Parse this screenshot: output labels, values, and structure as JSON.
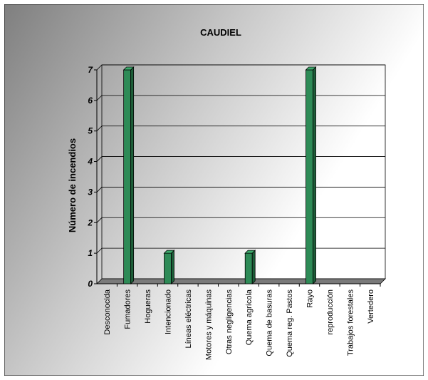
{
  "chart_data": {
    "type": "bar",
    "title": "CAUDIEL",
    "xlabel": "",
    "ylabel": "Número de incendios",
    "ylim": [
      0,
      7
    ],
    "yticks": [
      "0",
      "1",
      "2",
      "3",
      "4",
      "5",
      "6",
      "7"
    ],
    "grid": true,
    "legend": "none",
    "categories": [
      "Desconocida",
      "Fumadores",
      "Hogueras",
      "Intencionado",
      "Líneas eléctricas",
      "Motores y máquinas",
      "Otras negligencias",
      "Quema agrícola",
      "Quema de basuras",
      "Quema reg. Pastos",
      "Rayo",
      "reproducción",
      "Trabajos forestales",
      "Vertedero"
    ],
    "values": [
      0,
      7,
      0,
      1,
      0,
      0,
      0,
      1,
      0,
      0,
      7,
      0,
      0,
      0
    ],
    "colors": {
      "bar_front": "#2e8b57",
      "bar_side": "#1d5e39",
      "bar_top": "#3daa6c",
      "background_dark": "#8a8a8a",
      "background_light": "#ffffff"
    }
  }
}
